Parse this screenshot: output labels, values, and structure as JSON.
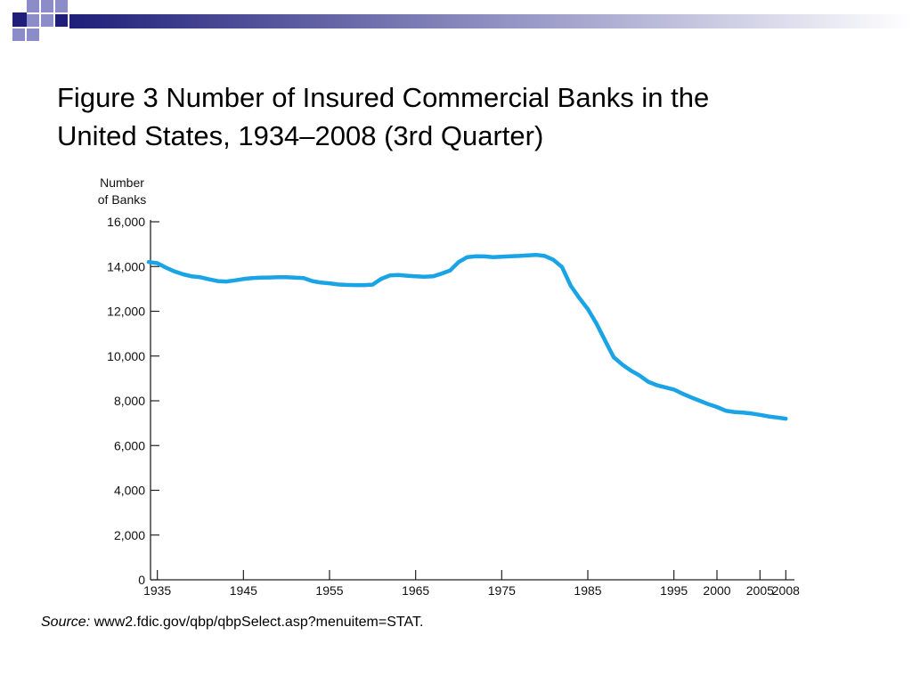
{
  "slide": {
    "title_lines": [
      "Figure 3  Number of Insured Commercial Banks in the",
      "United States, 1934–2008 (3rd Quarter)"
    ],
    "source_label": "Source:",
    "source_text": " www2.fdic.gov/qbp/qbpSelect.asp?menuitem=STAT.",
    "colors": {
      "decor_navy": "#1f1f7a",
      "decor_lavender": "#8c8cc8",
      "line": "#1aa4e6"
    }
  },
  "chart_data": {
    "type": "line",
    "title": "",
    "ylabel_lines": [
      "Number",
      "of Banks"
    ],
    "xlabel": "",
    "ylim": [
      0,
      16000
    ],
    "xlim": [
      1934,
      2009
    ],
    "yticks": [
      0,
      2000,
      4000,
      6000,
      8000,
      10000,
      12000,
      14000,
      16000
    ],
    "ytick_labels": [
      "0",
      "2,000",
      "4,000",
      "6,000",
      "8,000",
      "10,000",
      "12,000",
      "14,000",
      "16,000"
    ],
    "xticks": [
      1935,
      1945,
      1955,
      1965,
      1975,
      1985,
      1995,
      2000,
      2005,
      2008
    ],
    "xtick_labels": [
      "1935",
      "1945",
      "1955",
      "1965",
      "1975",
      "1985",
      "1995",
      "2000",
      "2005",
      "2008"
    ],
    "grid": false,
    "series": [
      {
        "x": [
          1934,
          1935,
          1936,
          1937,
          1938,
          1939,
          1940,
          1941,
          1942,
          1943,
          1944,
          1945,
          1946,
          1947,
          1948,
          1949,
          1950,
          1951,
          1952,
          1953,
          1954,
          1955,
          1956,
          1957,
          1958,
          1959,
          1960,
          1961,
          1962,
          1963,
          1964,
          1965,
          1966,
          1967,
          1968,
          1969,
          1970,
          1971,
          1972,
          1973,
          1974,
          1975,
          1976,
          1977,
          1978,
          1979,
          1980,
          1981,
          1982,
          1983,
          1984,
          1985,
          1986,
          1987,
          1988,
          1989,
          1990,
          1991,
          1992,
          1993,
          1994,
          1995,
          1996,
          1997,
          1998,
          1999,
          2000,
          2001,
          2002,
          2003,
          2004,
          2005,
          2006,
          2007,
          2008
        ],
        "values": [
          14200,
          14150,
          13950,
          13780,
          13650,
          13560,
          13520,
          13430,
          13350,
          13330,
          13380,
          13440,
          13480,
          13500,
          13510,
          13520,
          13520,
          13500,
          13480,
          13350,
          13280,
          13250,
          13200,
          13180,
          13170,
          13170,
          13190,
          13450,
          13600,
          13620,
          13590,
          13560,
          13540,
          13560,
          13680,
          13820,
          14200,
          14420,
          14460,
          14450,
          14420,
          14440,
          14460,
          14470,
          14500,
          14520,
          14470,
          14300,
          13980,
          13150,
          12600,
          12100,
          11450,
          10700,
          9950,
          9620,
          9350,
          9130,
          8850,
          8700,
          8600,
          8500,
          8320,
          8150,
          8000,
          7850,
          7720,
          7560,
          7500,
          7470,
          7430,
          7370,
          7300,
          7250,
          7200
        ]
      }
    ]
  }
}
